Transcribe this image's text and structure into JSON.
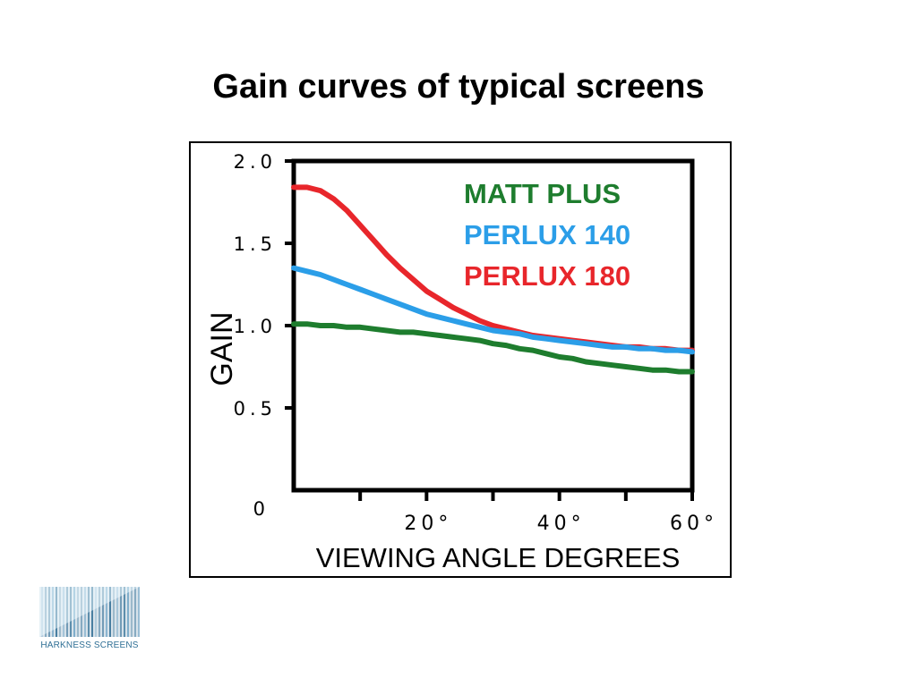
{
  "title": "Gain curves of typical screens",
  "brand": {
    "name": "HARKNESS SCREENS",
    "logo_icon": "harkness-logo-icon"
  },
  "chart_data": {
    "type": "line",
    "xlabel": "VIEWING ANGLE DEGREES",
    "ylabel": "GAIN",
    "xlim": [
      0,
      60
    ],
    "ylim": [
      0,
      2.0
    ],
    "x_ticks": [
      10,
      20,
      30,
      40,
      50,
      60
    ],
    "x_tick_labels": [
      "20°",
      "40°",
      "60°"
    ],
    "x_tick_label_values": [
      20,
      40,
      60
    ],
    "y_ticks": [
      0,
      0.5,
      1.0,
      1.5,
      2.0
    ],
    "y_tick_labels": [
      "0",
      "0.5",
      "1.0",
      "1.5",
      "2.0"
    ],
    "grid": false,
    "legend_position": "top-right",
    "series": [
      {
        "name": "PERLUX 180",
        "color": "#e8262b",
        "x": [
          0,
          2,
          4,
          6,
          8,
          10,
          12,
          14,
          16,
          18,
          20,
          22,
          24,
          26,
          28,
          30,
          32,
          34,
          36,
          38,
          40,
          42,
          44,
          46,
          48,
          50,
          52,
          54,
          56,
          58,
          60
        ],
        "y": [
          1.84,
          1.84,
          1.82,
          1.77,
          1.7,
          1.61,
          1.52,
          1.43,
          1.35,
          1.28,
          1.21,
          1.16,
          1.11,
          1.07,
          1.03,
          1.0,
          0.98,
          0.96,
          0.94,
          0.93,
          0.92,
          0.91,
          0.9,
          0.89,
          0.88,
          0.87,
          0.87,
          0.86,
          0.86,
          0.85,
          0.85
        ]
      },
      {
        "name": "PERLUX 140",
        "color": "#2b9ee8",
        "x": [
          0,
          2,
          4,
          6,
          8,
          10,
          12,
          14,
          16,
          18,
          20,
          22,
          24,
          26,
          28,
          30,
          32,
          34,
          36,
          38,
          40,
          42,
          44,
          46,
          48,
          50,
          52,
          54,
          56,
          58,
          60
        ],
        "y": [
          1.35,
          1.33,
          1.31,
          1.28,
          1.25,
          1.22,
          1.19,
          1.16,
          1.13,
          1.1,
          1.07,
          1.05,
          1.03,
          1.01,
          0.99,
          0.97,
          0.96,
          0.95,
          0.93,
          0.92,
          0.91,
          0.9,
          0.89,
          0.88,
          0.87,
          0.87,
          0.86,
          0.86,
          0.85,
          0.85,
          0.84
        ]
      },
      {
        "name": "MATT PLUS",
        "color": "#1e7d2e",
        "x": [
          0,
          2,
          4,
          6,
          8,
          10,
          12,
          14,
          16,
          18,
          20,
          22,
          24,
          26,
          28,
          30,
          32,
          34,
          36,
          38,
          40,
          42,
          44,
          46,
          48,
          50,
          52,
          54,
          56,
          58,
          60
        ],
        "y": [
          1.01,
          1.01,
          1.0,
          1.0,
          0.99,
          0.99,
          0.98,
          0.97,
          0.96,
          0.96,
          0.95,
          0.94,
          0.93,
          0.92,
          0.91,
          0.89,
          0.88,
          0.86,
          0.85,
          0.83,
          0.81,
          0.8,
          0.78,
          0.77,
          0.76,
          0.75,
          0.74,
          0.73,
          0.73,
          0.72,
          0.72
        ]
      }
    ],
    "legend_order": [
      "MATT PLUS",
      "PERLUX 140",
      "PERLUX 180"
    ]
  }
}
